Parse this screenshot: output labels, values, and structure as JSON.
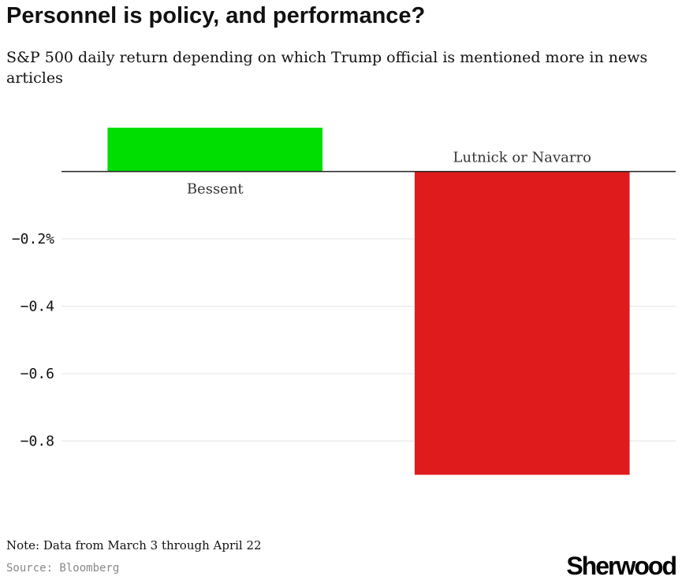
{
  "header": {
    "title": "Personnel is policy, and performance?",
    "subtitle": "S&P 500 daily return depending on which Trump official is mentioned more in news articles"
  },
  "footer": {
    "note": "Note: Data from March 3 through April 22",
    "source": "Source: Bloomberg",
    "logo": "Sherwood"
  },
  "chart_data": {
    "type": "bar",
    "categories": [
      "Bessent",
      "Lutnick or Navarro"
    ],
    "values": [
      0.13,
      -0.9
    ],
    "colors": [
      "#00dd00",
      "#e01b1b"
    ],
    "ylim": [
      -0.92,
      0.13
    ],
    "yticks": [
      -0.2,
      -0.4,
      -0.6,
      -0.8
    ],
    "ytick_labels": [
      "−0.2%",
      "−0.4",
      "−0.6",
      "−0.8"
    ],
    "grid": true,
    "xlabel": "",
    "ylabel": ""
  }
}
